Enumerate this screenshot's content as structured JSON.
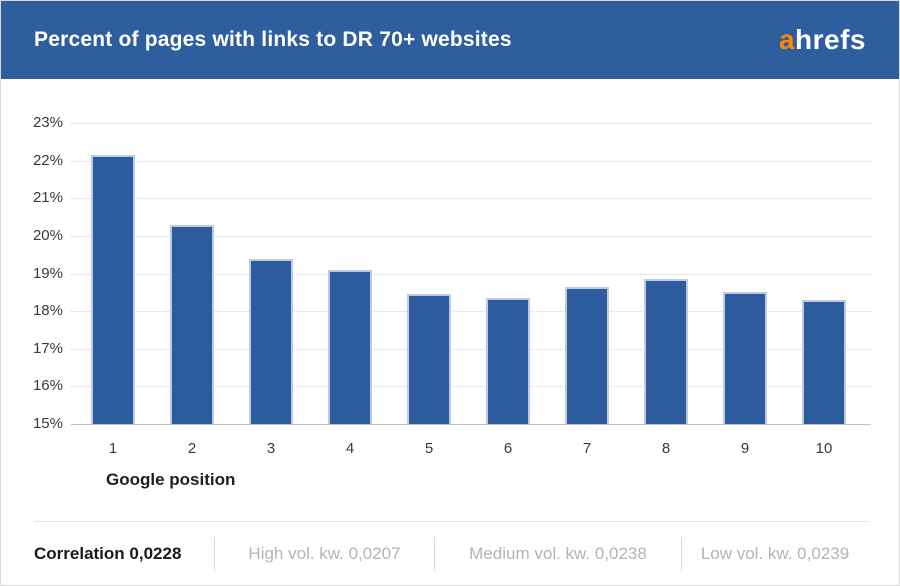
{
  "header": {
    "title": "Percent of pages with links to DR 70+ websites",
    "bg_color": "#2e5e9e",
    "logo": {
      "name": "ahrefs-logo",
      "prefix": "a",
      "rest": "hrefs",
      "prefix_color": "#ff8800",
      "rest_color": "#ffffff"
    }
  },
  "chart_data": {
    "type": "bar",
    "title": "Percent of pages with links to DR 70+ websites",
    "xlabel": "Google position",
    "ylabel": "",
    "categories": [
      "1",
      "2",
      "3",
      "4",
      "5",
      "6",
      "7",
      "8",
      "9",
      "10"
    ],
    "values": [
      22.15,
      20.3,
      19.4,
      19.1,
      18.45,
      18.35,
      18.65,
      18.85,
      18.5,
      18.3
    ],
    "ylim": [
      15,
      23
    ],
    "y_tick_labels": [
      "15%",
      "16%",
      "17%",
      "18%",
      "19%",
      "20%",
      "21%",
      "22%",
      "23%"
    ],
    "y_suffix": "%",
    "bar_color": "#2d5c9e",
    "bar_border_color": "#bccbe3",
    "grid": "horizontal-dotted",
    "legend": "none"
  },
  "footer": {
    "items": [
      {
        "label": "Correlation 0,0228",
        "emphasis": true
      },
      {
        "label": "High vol. kw. 0,0207",
        "emphasis": false
      },
      {
        "label": "Medium vol. kw. 0,0238",
        "emphasis": false
      },
      {
        "label": "Low vol. kw. 0,0239",
        "emphasis": false
      }
    ]
  }
}
